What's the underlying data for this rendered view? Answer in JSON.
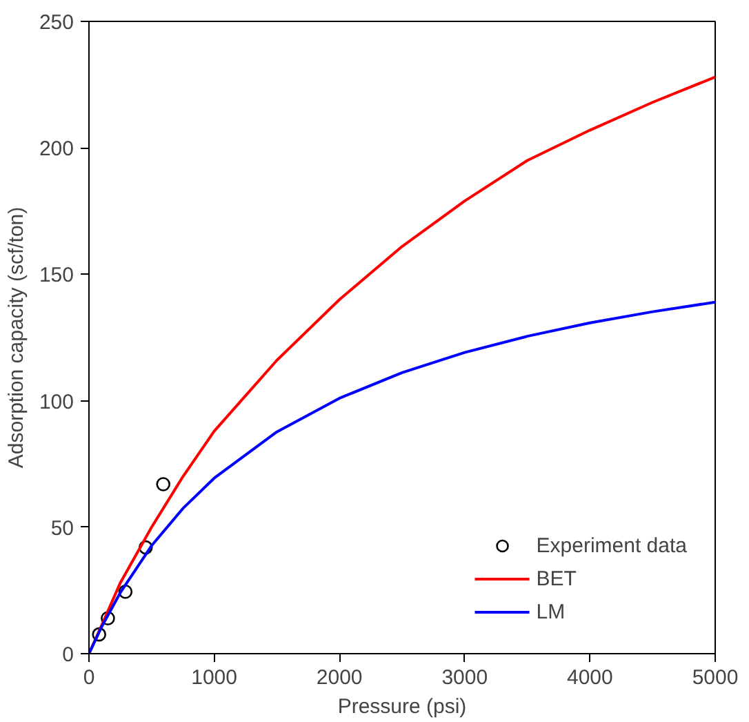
{
  "chart_data": {
    "type": "line",
    "xlabel": "Pressure (psi)",
    "ylabel": "Adsorption capacity (scf/ton)",
    "xlim": [
      0,
      5000
    ],
    "ylim": [
      0,
      250
    ],
    "xticks": [
      0,
      1000,
      2000,
      3000,
      4000,
      5000
    ],
    "yticks": [
      0,
      50,
      100,
      150,
      200,
      250
    ],
    "grid": false,
    "legend": "bottom right",
    "series": [
      {
        "name": "Experiment data",
        "type": "scatter",
        "marker": "circle",
        "color": "#000000",
        "x": [
          81,
          151,
          291,
          453,
          593
        ],
        "values": [
          7.6,
          14,
          24.5,
          42,
          67
        ]
      },
      {
        "name": "BET",
        "color": "#ff0000",
        "x": [
          0,
          100,
          250,
          500,
          750,
          1000,
          1500,
          2000,
          2500,
          3000,
          3500,
          4000,
          4500,
          5000
        ],
        "values": [
          0,
          11,
          28,
          50,
          70,
          88,
          116,
          140,
          161,
          179,
          195,
          207,
          218,
          228
        ]
      },
      {
        "name": "LM",
        "color": "#0000ff",
        "x": [
          0,
          100,
          250,
          500,
          750,
          1000,
          1500,
          2000,
          2500,
          3000,
          3500,
          4000,
          4500,
          5000
        ],
        "values": [
          0,
          10.5,
          24.1,
          42.7,
          57.4,
          69.4,
          87.7,
          101.0,
          111.1,
          119.1,
          125.5,
          130.8,
          135.2,
          139.0
        ]
      }
    ]
  }
}
